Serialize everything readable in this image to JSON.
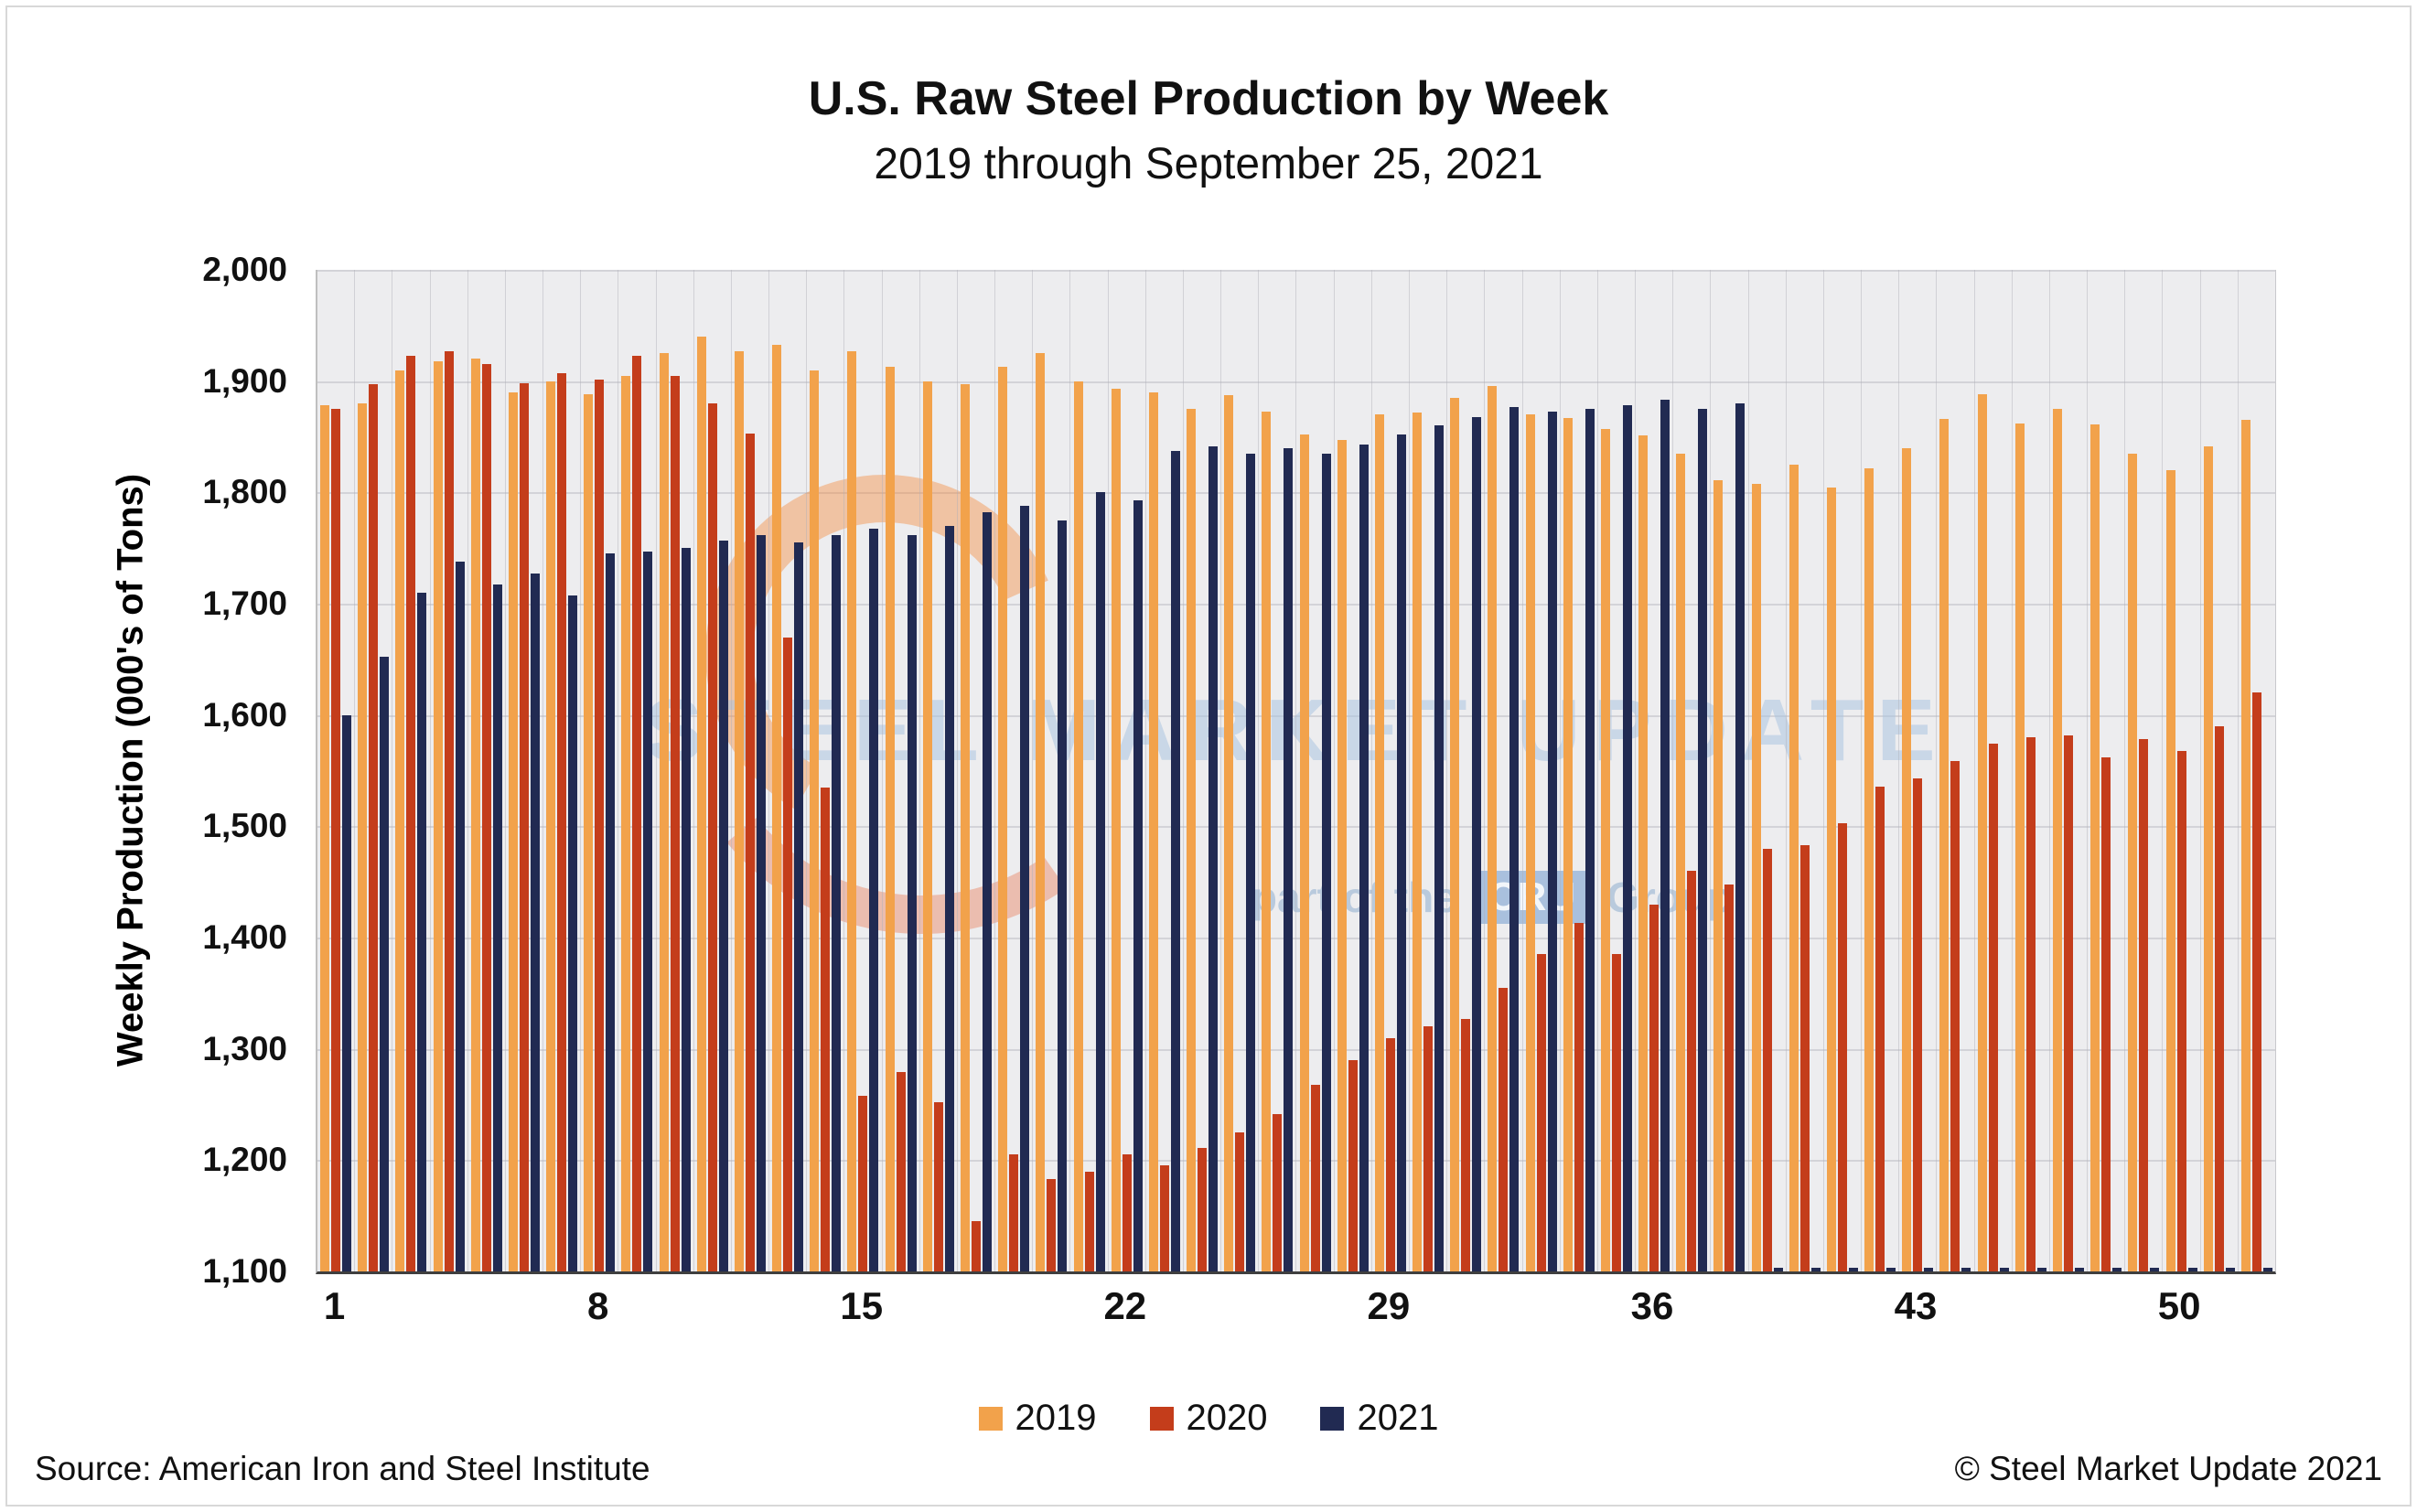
{
  "title": "U.S. Raw Steel Production by Week",
  "subtitle": "2019 through September 25, 2021",
  "source": "Source: American Iron and Steel Institute",
  "copyright": "© Steel Market Update 2021",
  "watermark": {
    "main": "STEEL MARKET UPDATE",
    "sub_prefix": "part of the",
    "badge": "CRU",
    "sub_suffix": "Group"
  },
  "chart_data": {
    "type": "bar",
    "title": "U.S. Raw Steel Production by Week",
    "subtitle": "2019 through September 25, 2021",
    "xlabel": "",
    "ylabel": "Weekly Production (000's of Tons)",
    "ylim": [
      1100,
      2000
    ],
    "ytick_step": 100,
    "ytick_labels": [
      "1,100",
      "1,200",
      "1,300",
      "1,400",
      "1,500",
      "1,600",
      "1,700",
      "1,800",
      "1,900",
      "2,000"
    ],
    "x": [
      1,
      2,
      3,
      4,
      5,
      6,
      7,
      8,
      9,
      10,
      11,
      12,
      13,
      14,
      15,
      16,
      17,
      18,
      19,
      20,
      21,
      22,
      23,
      24,
      25,
      26,
      27,
      28,
      29,
      30,
      31,
      32,
      33,
      34,
      35,
      36,
      37,
      38,
      39,
      40,
      41,
      42,
      43,
      44,
      45,
      46,
      47,
      48,
      49,
      50,
      51,
      52
    ],
    "xticks": [
      1,
      8,
      15,
      22,
      29,
      36,
      43,
      50
    ],
    "xtick_labels": [
      "1",
      "8",
      "15",
      "22",
      "29",
      "36",
      "43",
      "50"
    ],
    "grid": true,
    "legend_position": "bottom",
    "series": [
      {
        "name": "2019",
        "color": "#F2A24B",
        "values": [
          1878,
          1880,
          1910,
          1918,
          1920,
          1890,
          1900,
          1888,
          1905,
          1925,
          1940,
          1927,
          1933,
          1910,
          1927,
          1913,
          1900,
          1897,
          1913,
          1925,
          1900,
          1893,
          1890,
          1875,
          1887,
          1873,
          1852,
          1847,
          1870,
          1872,
          1885,
          1896,
          1870,
          1867,
          1857,
          1851,
          1835,
          1811,
          1808,
          1825,
          1804,
          1822,
          1840,
          1866,
          1888,
          1862,
          1875,
          1861,
          1835,
          1820,
          1841,
          1865
        ]
      },
      {
        "name": "2020",
        "color": "#C43D1B",
        "values": [
          1875,
          1897,
          1923,
          1927,
          1915,
          1898,
          1907,
          1901,
          1923,
          1905,
          1880,
          1853,
          1670,
          1535,
          1258,
          1279,
          1252,
          1145,
          1205,
          1183,
          1190,
          1205,
          1195,
          1211,
          1225,
          1241,
          1268,
          1290,
          1310,
          1320,
          1327,
          1355,
          1385,
          1413,
          1385,
          1430,
          1460,
          1448,
          1480,
          1483,
          1503,
          1536,
          1543,
          1559,
          1574,
          1580,
          1582,
          1562,
          1578,
          1568,
          1590,
          1620
        ]
      },
      {
        "name": "2021",
        "color": "#212A52",
        "values": [
          1600,
          1652,
          1710,
          1738,
          1717,
          1727,
          1707,
          1745,
          1747,
          1750,
          1757,
          1762,
          1755,
          1762,
          1767,
          1762,
          1770,
          1782,
          1788,
          1775,
          1800,
          1793,
          1837,
          1841,
          1835,
          1840,
          1835,
          1843,
          1852,
          1860,
          1868,
          1877,
          1873,
          1875,
          1878,
          1883,
          1875,
          1880,
          null,
          null,
          null,
          null,
          null,
          null,
          null,
          null,
          null,
          null,
          null,
          null,
          null,
          null
        ]
      }
    ]
  }
}
